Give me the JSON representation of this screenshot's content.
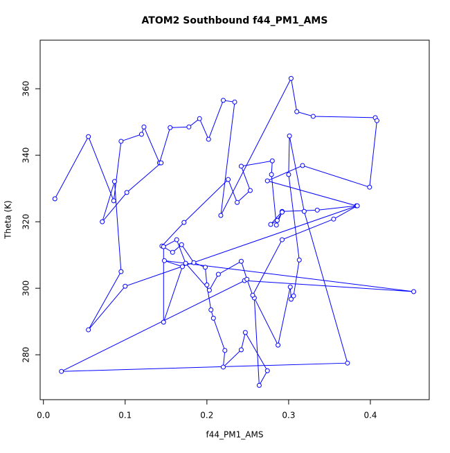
{
  "chart_data": {
    "type": "line",
    "title": "ATOM2 Southbound f44_PM1_AMS",
    "x_label": "f44_PM1_AMS",
    "y_label": "Theta (K)",
    "color": "#0000ff",
    "x": [
      0.014,
      0.055,
      0.086,
      0.095,
      0.12,
      0.123,
      0.142,
      0.155,
      0.178,
      0.191,
      0.202,
      0.22,
      0.234,
      0.217,
      0.303,
      0.31,
      0.33,
      0.406,
      0.408,
      0.399,
      0.317,
      0.274,
      0.383,
      0.335,
      0.292,
      0.278,
      0.286,
      0.292,
      0.285,
      0.279,
      0.28,
      0.242,
      0.253,
      0.237,
      0.226,
      0.172,
      0.145,
      0.158,
      0.169,
      0.184,
      0.198,
      0.2,
      0.205,
      0.208,
      0.222,
      0.22,
      0.242,
      0.247,
      0.274,
      0.264,
      0.258,
      0.287,
      0.302,
      0.303,
      0.306,
      0.313,
      0.3,
      0.301,
      0.319,
      0.372,
      0.022,
      0.246,
      0.453,
      0.148,
      0.17,
      0.147,
      0.147,
      0.163,
      0.174,
      0.203,
      0.214,
      0.242,
      0.249,
      0.256,
      0.292,
      0.355,
      0.384,
      0.1,
      0.055,
      0.095,
      0.087,
      0.072,
      0.102,
      0.144
    ],
    "values": [
      326.9,
      345.6,
      326.3,
      344.2,
      346.3,
      348.5,
      337.7,
      348.3,
      348.5,
      351.0,
      344.8,
      356.5,
      356.0,
      321.9,
      363.1,
      353.1,
      351.7,
      351.3,
      350.4,
      330.4,
      336.9,
      332.3,
      324.8,
      323.5,
      323.1,
      319.2,
      320.4,
      322.9,
      319.0,
      334.2,
      338.3,
      336.7,
      329.4,
      325.8,
      332.7,
      319.8,
      312.7,
      310.8,
      313.1,
      307.7,
      306.3,
      301.0,
      293.5,
      291.0,
      281.3,
      276.3,
      281.5,
      286.7,
      275.2,
      270.8,
      297.1,
      282.9,
      300.4,
      296.7,
      297.7,
      308.5,
      334.2,
      345.8,
      323.1,
      277.5,
      275.0,
      302.3,
      299.0,
      308.3,
      306.5,
      289.8,
      312.5,
      314.6,
      307.5,
      299.4,
      304.2,
      308.1,
      302.7,
      297.9,
      314.6,
      320.8,
      324.8,
      300.6,
      287.5,
      305.0,
      332.1,
      320.0,
      328.8,
      337.7
    ],
    "xlim": [
      -0.004,
      0.472
    ],
    "ylim": [
      266.5,
      374.6
    ],
    "xticks": [
      {
        "value": 0,
        "label": "0.0"
      },
      0.1,
      0.2,
      0.3,
      0.4
    ],
    "yticks": [
      280,
      300,
      320,
      340,
      360
    ]
  }
}
